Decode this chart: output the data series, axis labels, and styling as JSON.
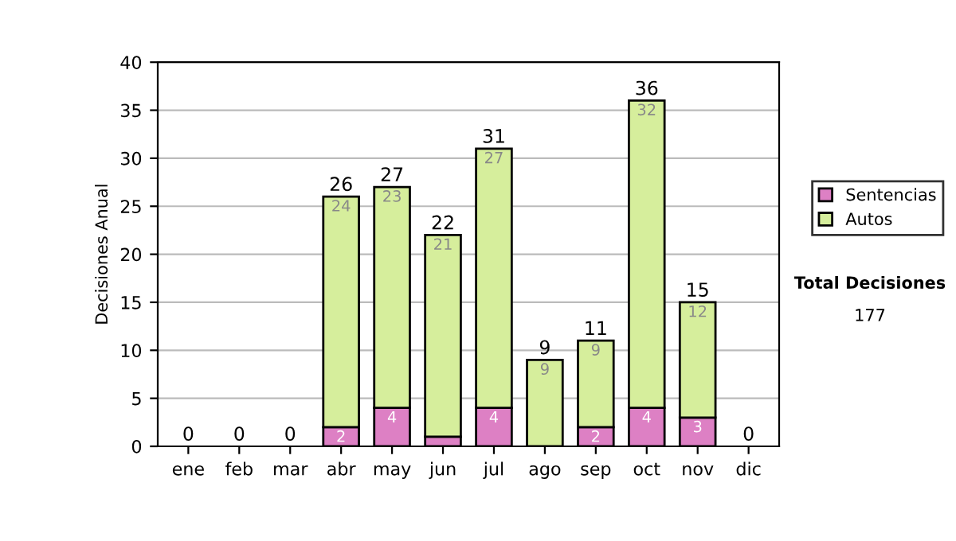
{
  "chart_data": {
    "type": "bar",
    "stacked": true,
    "ylabel": "Decisiones Anual",
    "categories": [
      "ene",
      "feb",
      "mar",
      "abr",
      "may",
      "jun",
      "jul",
      "ago",
      "sep",
      "oct",
      "nov",
      "dic"
    ],
    "series": [
      {
        "name": "Sentencias",
        "color": "#dd80c4",
        "values": [
          0,
          0,
          0,
          2,
          4,
          1,
          4,
          0,
          2,
          4,
          3,
          0
        ],
        "value_labels": [
          null,
          null,
          null,
          "2",
          "4",
          null,
          "4",
          null,
          "2",
          "4",
          "3",
          null
        ]
      },
      {
        "name": "Autos",
        "color": "#d6ee9c",
        "values": [
          0,
          0,
          0,
          24,
          23,
          21,
          27,
          9,
          9,
          32,
          12,
          0
        ],
        "value_labels": [
          null,
          null,
          null,
          "24",
          "23",
          "21",
          "27",
          "9",
          "9",
          "32",
          "12",
          null
        ]
      }
    ],
    "totals": [
      "0",
      "0",
      "0",
      "26",
      "27",
      "22",
      "31",
      "9",
      "11",
      "36",
      "15",
      "0"
    ],
    "ylim": [
      0,
      40
    ],
    "yticks": [
      0,
      5,
      10,
      15,
      20,
      25,
      30,
      35,
      40
    ],
    "grid": "y",
    "legend": "right",
    "annotations": [
      "Total Decisiones",
      "177"
    ]
  }
}
